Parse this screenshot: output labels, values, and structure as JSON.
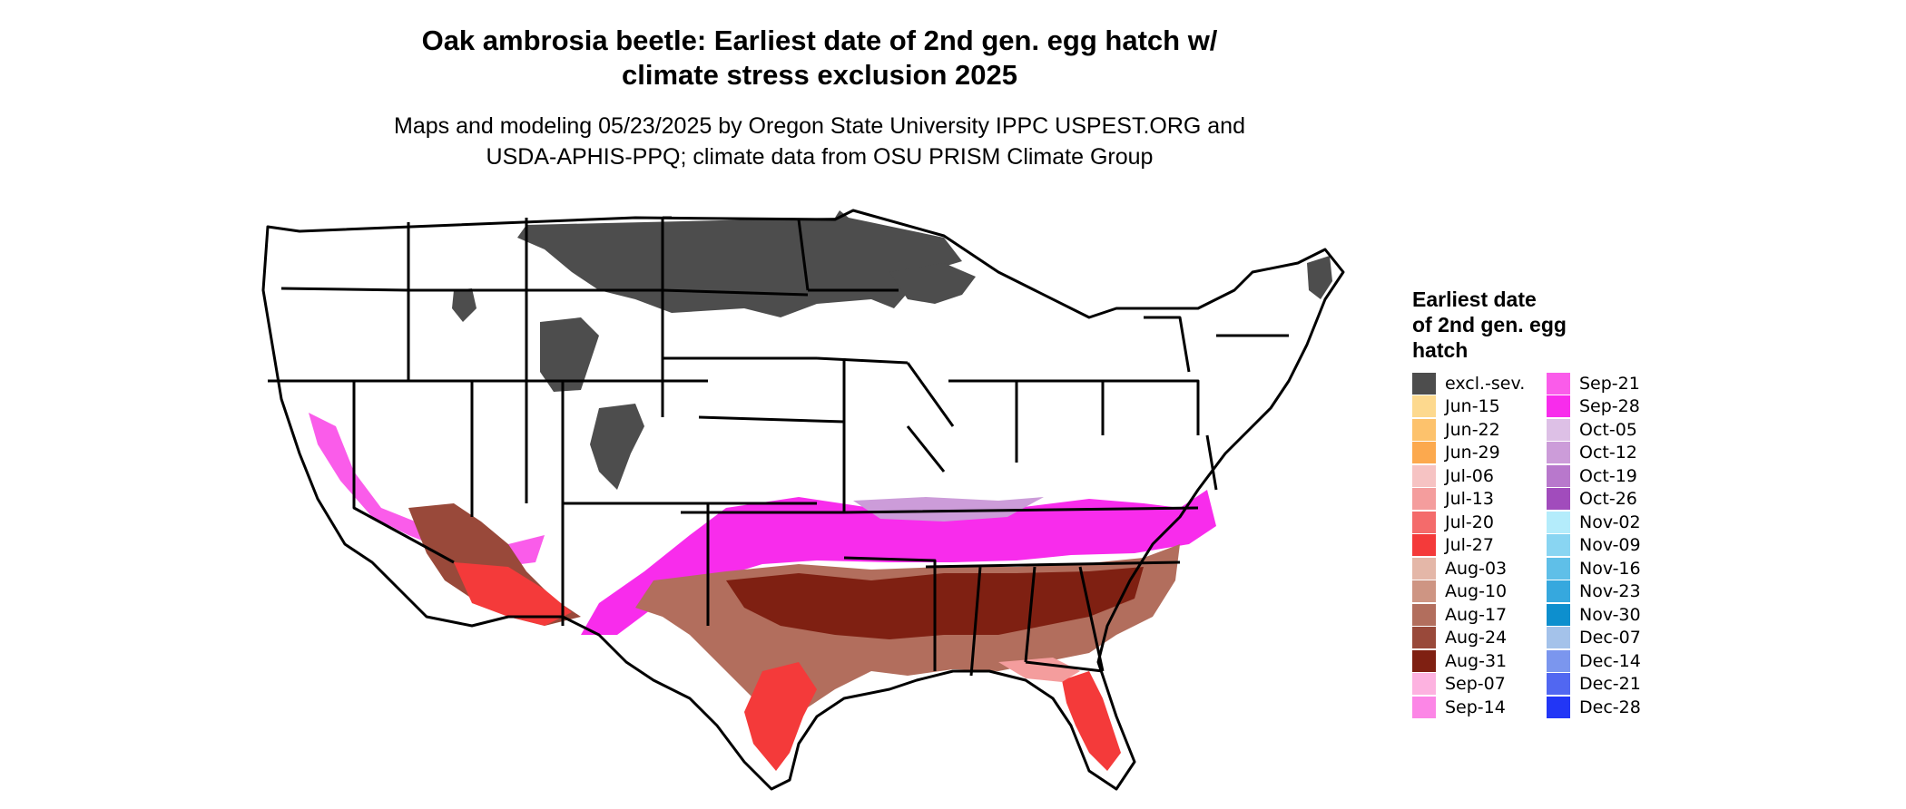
{
  "title": {
    "line1": "Oak ambrosia beetle: Earliest date of 2nd gen. egg hatch w/",
    "line2": "climate stress exclusion 2025"
  },
  "subtitle": {
    "line1": "Maps and modeling 05/23/2025 by Oregon State University IPPC USPEST.ORG and",
    "line2": "USDA-APHIS-PPQ; climate data from OSU PRISM Climate Group"
  },
  "legend": {
    "title_lines": [
      "Earliest date",
      "of 2nd gen. egg",
      "hatch"
    ],
    "column1": [
      {
        "label": "excl.-sev.",
        "color": "#4d4d4d"
      },
      {
        "label": "Jun-15",
        "color": "#fdd98e"
      },
      {
        "label": "Jun-22",
        "color": "#fdc26c"
      },
      {
        "label": "Jun-29",
        "color": "#fca94e"
      },
      {
        "label": "Jul-06",
        "color": "#f6c3c3"
      },
      {
        "label": "Jul-13",
        "color": "#f49d9d"
      },
      {
        "label": "Jul-20",
        "color": "#f46b6b"
      },
      {
        "label": "Jul-27",
        "color": "#f43a3a"
      },
      {
        "label": "Aug-03",
        "color": "#e4b7a8"
      },
      {
        "label": "Aug-10",
        "color": "#ce9583"
      },
      {
        "label": "Aug-17",
        "color": "#b26e5d"
      },
      {
        "label": "Aug-24",
        "color": "#99493a"
      },
      {
        "label": "Aug-31",
        "color": "#7f2012"
      },
      {
        "label": "Sep-07",
        "color": "#fdb2e0"
      },
      {
        "label": "Sep-14",
        "color": "#fc86e6"
      }
    ],
    "column2": [
      {
        "label": "Sep-21",
        "color": "#fa5cea"
      },
      {
        "label": "Sep-28",
        "color": "#f82cec"
      },
      {
        "label": "Oct-05",
        "color": "#ddc0e6"
      },
      {
        "label": "Oct-12",
        "color": "#cc9cd9"
      },
      {
        "label": "Oct-19",
        "color": "#b878cc"
      },
      {
        "label": "Oct-26",
        "color": "#a14cbc"
      },
      {
        "label": "Nov-02",
        "color": "#b4ecfb"
      },
      {
        "label": "Nov-09",
        "color": "#89d5f2"
      },
      {
        "label": "Nov-16",
        "color": "#5fbfe8"
      },
      {
        "label": "Nov-23",
        "color": "#36a8de"
      },
      {
        "label": "Nov-30",
        "color": "#0d8fce"
      },
      {
        "label": "Dec-07",
        "color": "#a4c2ea"
      },
      {
        "label": "Dec-14",
        "color": "#7b96ee"
      },
      {
        "label": "Dec-21",
        "color": "#5167f1"
      },
      {
        "label": "Dec-28",
        "color": "#2236f6"
      }
    ]
  }
}
